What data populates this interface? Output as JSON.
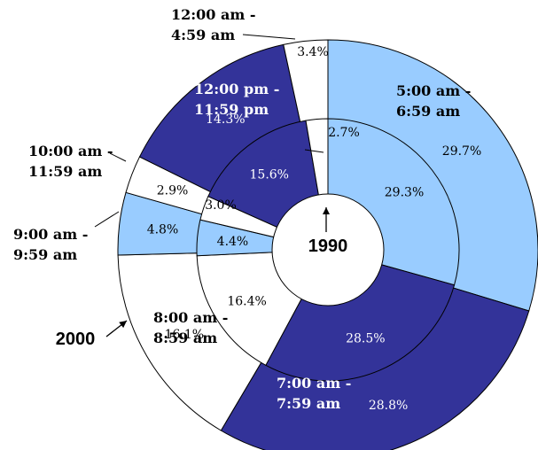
{
  "chart_data": {
    "type": "pie",
    "subtype": "double-donut",
    "colors": {
      "dark": "#333399",
      "light": "#99ccff",
      "white": "#ffffff",
      "outline": "#000000"
    },
    "categories": [
      "5:00 am - 6:59 am",
      "7:00 am - 7:59 am",
      "8:00 am - 8:59 am",
      "9:00 am - 9:59 am",
      "10:00 am - 11:59 am",
      "12:00 pm - 11:59 pm",
      "12:00 am - 4:59 am"
    ],
    "category_labels": [
      [
        "5:00 am -",
        "6:59 am"
      ],
      [
        "7:00 am -",
        "7:59 am"
      ],
      [
        "8:00 am -",
        "8:59 am"
      ],
      [
        "9:00 am -",
        "9:59 am"
      ],
      [
        "10:00 am -",
        "11:59 am"
      ],
      [
        "12:00 pm -",
        "11:59 pm"
      ],
      [
        "12:00 am -",
        "4:59 am"
      ]
    ],
    "slice_colors": [
      "light",
      "dark",
      "white",
      "light",
      "white",
      "dark",
      "white"
    ],
    "series": [
      {
        "name": "1990",
        "ring": "inner",
        "values": [
          29.3,
          28.5,
          16.4,
          4.4,
          3.0,
          15.6,
          2.7
        ],
        "value_labels": [
          "29.3%",
          "28.5%",
          "16.4%",
          "4.4%",
          "3.0%",
          "15.6%",
          "2.7%"
        ]
      },
      {
        "name": "2000",
        "ring": "outer",
        "values": [
          29.7,
          28.8,
          16.1,
          4.8,
          2.9,
          14.3,
          3.4
        ],
        "value_labels": [
          "29.7%",
          "28.8%",
          "16.1%",
          "4.8%",
          "2.9%",
          "14.3%",
          "3.4%"
        ]
      }
    ]
  }
}
